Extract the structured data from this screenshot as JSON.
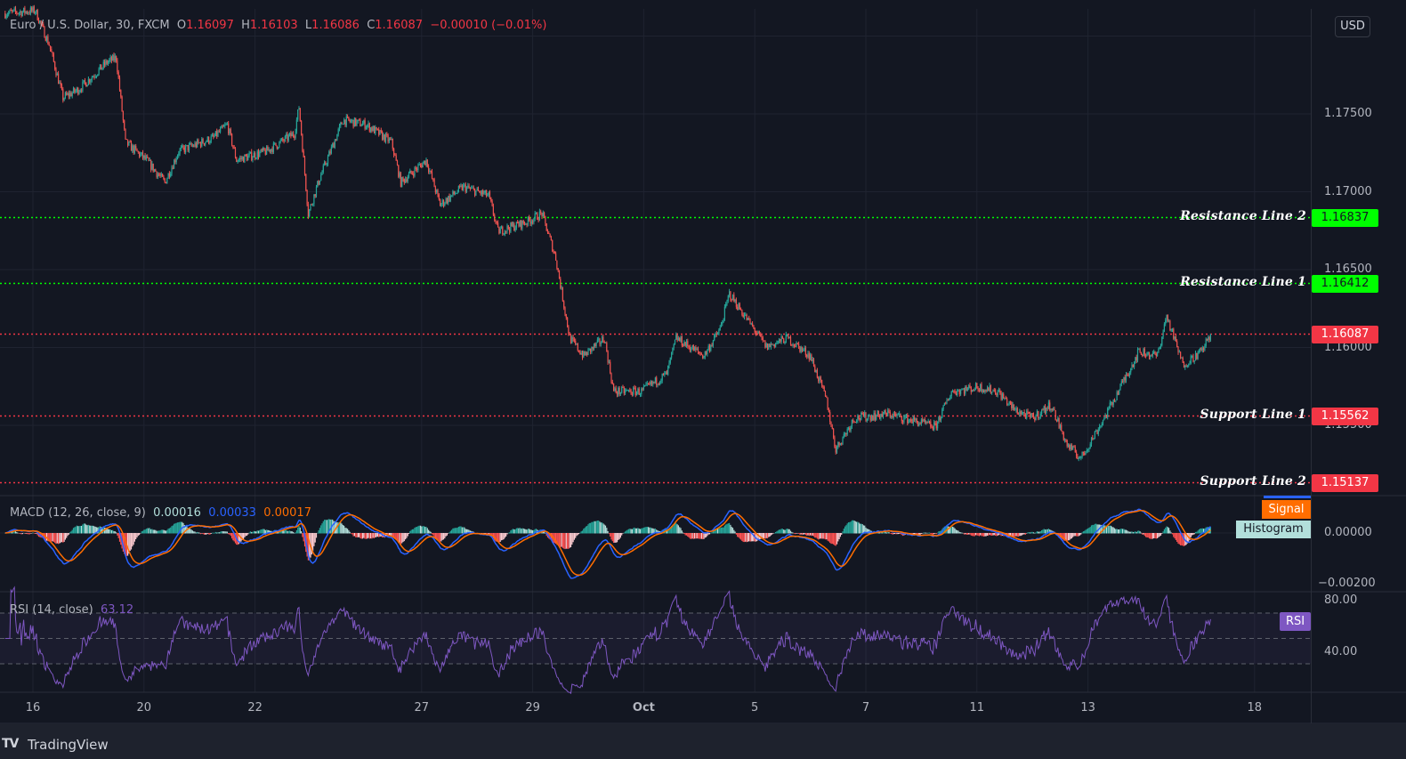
{
  "header": {
    "symbol": "Euro / U.S. Dollar, 30, FXCM",
    "open_label": "O",
    "open": "1.16097",
    "high_label": "H",
    "high": "1.16103",
    "low_label": "L",
    "low": "1.16086",
    "close_label": "C",
    "close": "1.16087",
    "change": "−0.00010 (−0.01%)"
  },
  "currency_button": "USD",
  "price_axis": {
    "ticks": [
      "1.17500",
      "1.17000",
      "1.16500",
      "1.16000",
      "1.15500"
    ],
    "values": [
      1.175,
      1.17,
      1.165,
      1.16,
      1.155
    ]
  },
  "time_axis": {
    "ticks": [
      "16",
      "20",
      "22",
      "27",
      "29",
      "Oct",
      "5",
      "7",
      "11",
      "13",
      "18"
    ]
  },
  "levels": [
    {
      "name": "Resistance Line 2",
      "price": "1.16837",
      "color": "#00ff00"
    },
    {
      "name": "Resistance Line 1",
      "price": "1.16412",
      "color": "#00ff00"
    },
    {
      "name": "",
      "price": "1.16087",
      "color": "#f23645"
    },
    {
      "name": "Support Line 1",
      "price": "1.15562",
      "color": "#f23645"
    },
    {
      "name": "Support Line 2",
      "price": "1.15137",
      "color": "#f23645"
    }
  ],
  "macd": {
    "title": "MACD (12, 26, close, 9)",
    "histogram": "0.00016",
    "macd": "0.00033",
    "signal": "0.00017",
    "signal_label": "Signal",
    "histogram_label": "Histogram",
    "axis": [
      "0.00000",
      "−0.00200"
    ],
    "colors": {
      "macd": "#2962ff",
      "signal": "#ff6d00",
      "hist_up": "#26a69a",
      "hist_up_weak": "#b2dfdb",
      "hist_down": "#ff5252",
      "hist_down_weak": "#ffcdd2"
    }
  },
  "rsi": {
    "title": "RSI (14, close)",
    "value": "63.12",
    "label": "RSI",
    "axis": [
      "80.00",
      "40.00"
    ],
    "bands": [
      70,
      50,
      30
    ],
    "color": "#7e57c2"
  },
  "footer": {
    "brand": "TradingView"
  },
  "chart_data": {
    "type": "candlestick",
    "symbol": "EURUSD",
    "interval": "30",
    "ylim": [
      1.1495,
      1.181
    ],
    "colors": {
      "up": "#26a69a",
      "down": "#ef5350"
    },
    "price_path": [
      [
        "Sep 15 12:00",
        1.18146
      ],
      [
        "Sep 16 01:00",
        1.18163
      ],
      [
        "Sep 16 07:00",
        1.17946
      ],
      [
        "Sep 16 13:00",
        1.17603
      ],
      [
        "Sep 16 20:00",
        1.1766
      ],
      [
        "Sep 17 08:00",
        1.17831
      ],
      [
        "Sep 17 12:00",
        1.1786
      ],
      [
        "Sep 17 16:00",
        1.17317
      ],
      [
        "Sep 20 01:00",
        1.17203
      ],
      [
        "Sep 20 09:00",
        1.1706
      ],
      [
        "Sep 20 15:00",
        1.1726
      ],
      [
        "Sep 21 06:00",
        1.17346
      ],
      [
        "Sep 21 12:00",
        1.17431
      ],
      [
        "Sep 21 16:00",
        1.17203
      ],
      [
        "Sep 22 05:00",
        1.1726
      ],
      [
        "Sep 22 17:00",
        1.17374
      ],
      [
        "Sep 22 19:00",
        1.17546
      ],
      [
        "Sep 22 23:00",
        1.1686
      ],
      [
        "Sep 23 04:00",
        1.17089
      ],
      [
        "Sep 23 14:00",
        1.1746
      ],
      [
        "Sep 24 00:00",
        1.17431
      ],
      [
        "Sep 24 11:00",
        1.17317
      ],
      [
        "Sep 24 15:00",
        1.1706
      ],
      [
        "Sep 27 02:00",
        1.17203
      ],
      [
        "Sep 27 08:00",
        1.16917
      ],
      [
        "Sep 27 18:00",
        1.17031
      ],
      [
        "Sep 28 05:00",
        1.16974
      ],
      [
        "Sep 28 09:00",
        1.16746
      ],
      [
        "Sep 28 21:00",
        1.16803
      ],
      [
        "Sep 29 04:00",
        1.1686
      ],
      [
        "Sep 29 10:00",
        1.16574
      ],
      [
        "Sep 29 16:00",
        1.1606
      ],
      [
        "Sep 29 22:00",
        1.15946
      ],
      [
        "Sep 30 07:00",
        1.1606
      ],
      [
        "Sep 30 11:00",
        1.15717
      ],
      [
        "Sep 30 23:00",
        1.15717
      ],
      [
        "Oct 1 10:00",
        1.15831
      ],
      [
        "Oct 1 14:00",
        1.1606
      ],
      [
        "Oct 4 02:00",
        1.15946
      ],
      [
        "Oct 4 09:00",
        1.16117
      ],
      [
        "Oct 4 13:00",
        1.16346
      ],
      [
        "Oct 4 21:00",
        1.16174
      ],
      [
        "Oct 5 05:00",
        1.16003
      ],
      [
        "Oct 5 14:00",
        1.1606
      ],
      [
        "Oct 6 00:00",
        1.15946
      ],
      [
        "Oct 6 07:00",
        1.1566
      ],
      [
        "Oct 6 11:00",
        1.15346
      ],
      [
        "Oct 6 19:00",
        1.15546
      ],
      [
        "Oct 7 10:00",
        1.15574
      ],
      [
        "Oct 8 06:00",
        1.15489
      ],
      [
        "Oct 8 13:00",
        1.15717
      ],
      [
        "Oct 11 01:00",
        1.15746
      ],
      [
        "Oct 11 09:00",
        1.15717
      ],
      [
        "Oct 11 16:00",
        1.15603
      ],
      [
        "Oct 12 00:00",
        1.15546
      ],
      [
        "Oct 12 08:00",
        1.15631
      ],
      [
        "Oct 12 15:00",
        1.15374
      ],
      [
        "Oct 12 21:00",
        1.15289
      ],
      [
        "Oct 13 07:00",
        1.15546
      ],
      [
        "Oct 13 14:00",
        1.15746
      ],
      [
        "Oct 13 22:00",
        1.15974
      ],
      [
        "Oct 14 06:00",
        1.15946
      ],
      [
        "Oct 14 10:00",
        1.16203
      ],
      [
        "Oct 14 17:00",
        1.15889
      ],
      [
        "Oct 15 01:00",
        1.15974
      ],
      [
        "Oct 15 05:00",
        1.16087
      ]
    ]
  }
}
